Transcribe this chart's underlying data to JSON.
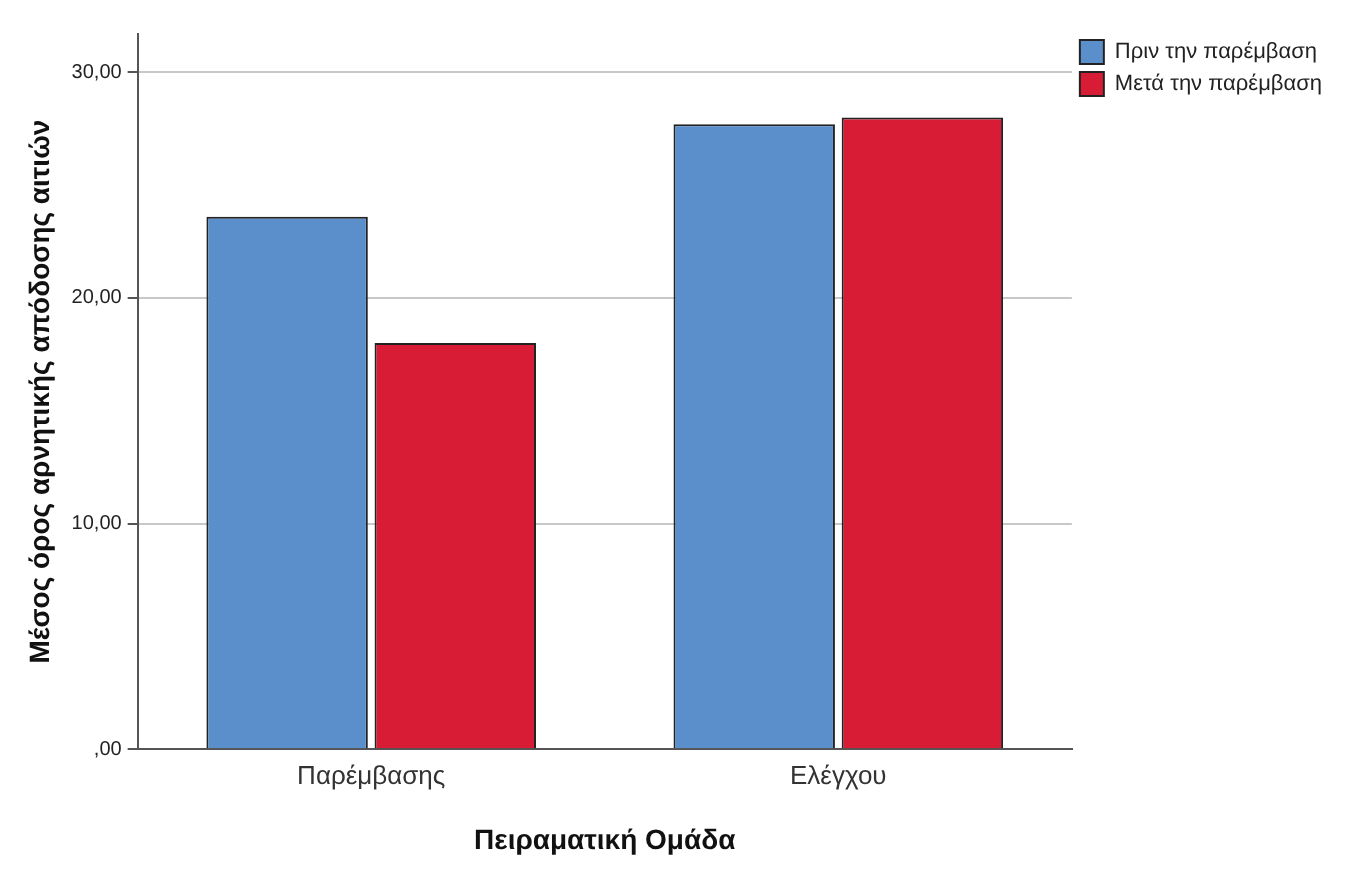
{
  "chart_data": {
    "type": "bar",
    "xlabel": "Πειραματική Ομάδα",
    "ylabel": "Μέσος όρος αρνητικής απόδοσης αιτιών",
    "categories": [
      "Παρέμβασης",
      "Ελέγχου"
    ],
    "series": [
      {
        "name": "Πριν την παρέμβαση",
        "color": "#5b8fcc",
        "values": [
          23.6,
          27.7
        ]
      },
      {
        "name": "Μετά την παρέμβαση",
        "color": "#d91c35",
        "values": [
          18.0,
          28.0
        ]
      }
    ],
    "ylim": [
      0,
      31.7
    ],
    "yticks": [
      {
        "value": 0,
        "label": ",00"
      },
      {
        "value": 10,
        "label": "10,00"
      },
      {
        "value": 20,
        "label": "20,00"
      },
      {
        "value": 30,
        "label": "30,00"
      }
    ],
    "grid": "y",
    "legend": "top right"
  }
}
